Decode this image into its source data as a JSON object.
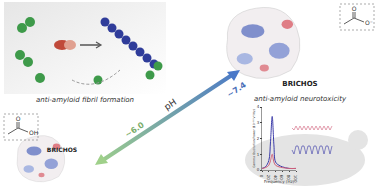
{
  "fibril_panel": {
    "label": "anti-amyloid fibril formation"
  },
  "ph_arrow": {
    "label": "pH",
    "high": "~7.4",
    "low": "~6.0"
  },
  "high_ph": {
    "protein": "BRICHOS",
    "group_texts": [
      "O",
      "O⁻"
    ],
    "effect": "anti-amyloid neurotoxicity"
  },
  "low_ph": {
    "protein": "BRICHOS",
    "group_texts": [
      "O",
      "OH"
    ]
  },
  "chart_data": {
    "type": "line",
    "x_label": "Frequency (Hz)",
    "y_label": "Gamma Oscillation Power (10⁻¹⁰ V²/Hz)",
    "x": [
      0,
      10,
      20,
      25,
      30,
      35,
      40,
      50,
      60,
      80,
      100
    ],
    "series": [
      {
        "color": "#3a3aa8",
        "values": [
          0.1,
          0.2,
          0.6,
          1.8,
          3.4,
          1.6,
          0.5,
          0.3,
          0.2,
          0.1,
          0.1
        ]
      },
      {
        "color": "#d0607a",
        "values": [
          0.1,
          0.15,
          0.3,
          0.6,
          1.0,
          0.5,
          0.3,
          0.2,
          0.15,
          0.1,
          0.1
        ]
      }
    ],
    "xlim": [
      0,
      100
    ],
    "xticks": [
      0,
      20,
      40,
      60,
      80,
      100
    ],
    "ylim": [
      0,
      4
    ],
    "yticks": [
      0,
      1,
      2,
      3,
      4
    ],
    "grid": false
  }
}
